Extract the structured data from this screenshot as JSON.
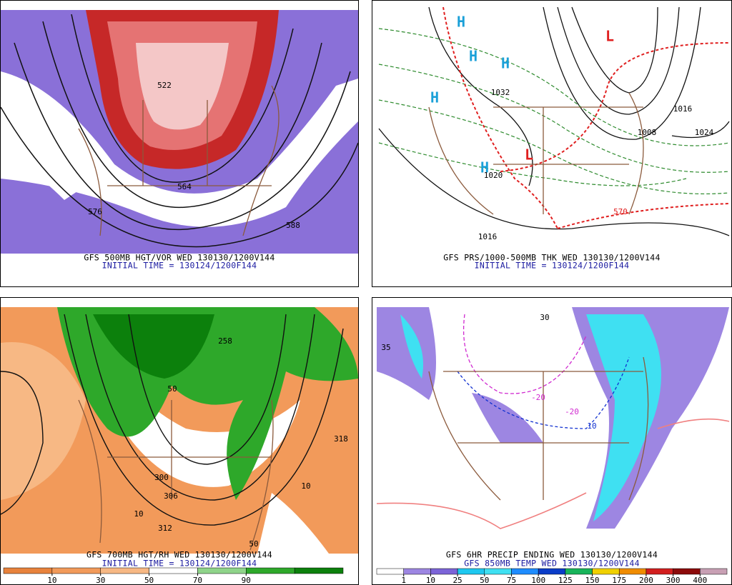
{
  "panels": [
    {
      "caption": [
        "GFS 500MB HGT/VOR WED 130130/1200V144",
        "INITIAL TIME = 130124/1200F144"
      ],
      "labels": [
        "564",
        "576",
        "588",
        "522"
      ]
    },
    {
      "caption": [
        "GFS PRS/1000-500MB THK WED 130130/1200V144",
        "INITIAL TIME = 130124/1200F144"
      ],
      "labels": [
        "H",
        "H",
        "H",
        "H",
        "H",
        "L",
        "L",
        "1016",
        "1024",
        "1016",
        "1008",
        "570",
        "1020",
        "1032"
      ]
    },
    {
      "caption": [
        "GFS 700MB HGT/RH WED 130130/1200V144",
        "INITIAL TIME = 130124/1200F144"
      ],
      "labels": [
        "318",
        "300",
        "306",
        "312",
        "10",
        "50",
        "258",
        "50",
        "10"
      ],
      "colorbar": {
        "ticks": [
          10,
          30,
          50,
          70,
          90
        ],
        "colors": [
          "#e8823c",
          "#f29a5a",
          "#f7b884",
          "#ffffff",
          "#8fd48a",
          "#2ea82a",
          "#0c800c"
        ]
      }
    },
    {
      "caption": [
        "GFS 6HR PRECIP ENDING WED 130130/1200V144",
        "GFS 850MB TEMP WED 130130/1200V144"
      ],
      "labels": [
        "-20",
        "35",
        "10",
        "30",
        "-20"
      ],
      "colorbar": {
        "ticks": [
          1,
          10,
          25,
          50,
          75,
          100,
          125,
          150,
          175,
          200,
          300,
          400
        ],
        "colors": [
          "#ffffff",
          "#9d86e2",
          "#7c64d8",
          "#1ec8f0",
          "#3fe0f2",
          "#1e8cff",
          "#0a3cc8",
          "#18b45a",
          "#f0d000",
          "#f08c00",
          "#d21e1e",
          "#8c0a0a",
          "#c8a0b4"
        ]
      }
    }
  ]
}
